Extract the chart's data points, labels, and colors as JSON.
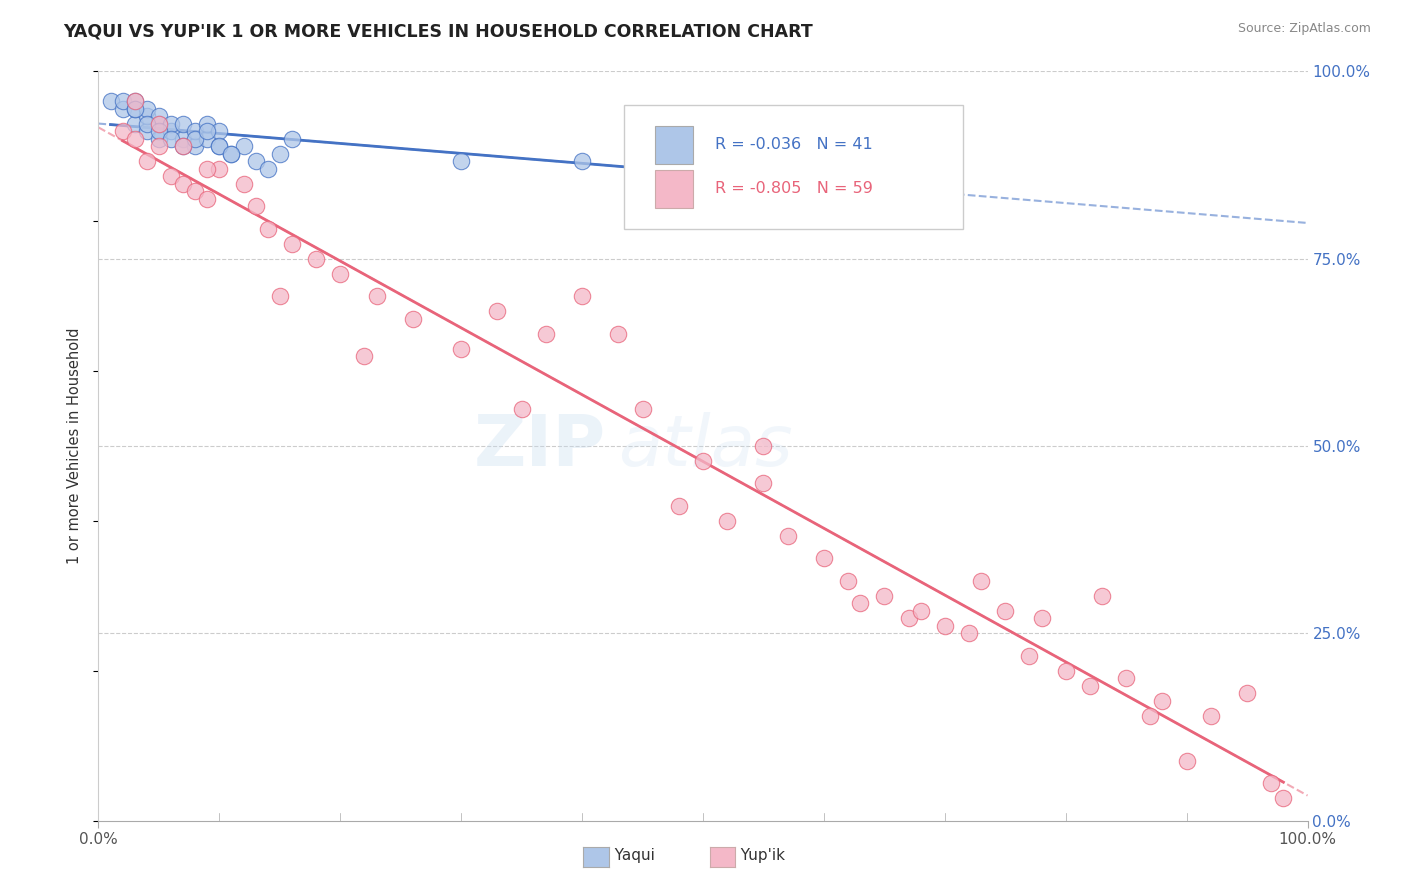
{
  "title": "YAQUI VS YUP'IK 1 OR MORE VEHICLES IN HOUSEHOLD CORRELATION CHART",
  "source": "Source: ZipAtlas.com",
  "ylabel": "1 or more Vehicles in Household",
  "legend_yaqui": "Yaqui",
  "legend_yupik": "Yup'ik",
  "R_yaqui": -0.036,
  "N_yaqui": 41,
  "R_yupik": -0.805,
  "N_yupik": 59,
  "yaqui_color": "#aec6e8",
  "yupik_color": "#f4b8c8",
  "yaqui_line_color": "#4472c4",
  "yupik_line_color": "#e8647a",
  "watermark_zip": "ZIP",
  "watermark_atlas": "atlas",
  "yaqui_x": [
    1,
    2,
    2,
    3,
    3,
    3,
    4,
    4,
    4,
    5,
    5,
    5,
    6,
    6,
    7,
    7,
    8,
    8,
    9,
    9,
    10,
    10,
    11,
    12,
    13,
    14,
    15,
    16,
    3,
    4,
    5,
    6,
    7,
    8,
    9,
    10,
    11,
    30,
    40,
    55,
    65
  ],
  "yaqui_y": [
    96,
    95,
    96,
    93,
    95,
    96,
    92,
    94,
    95,
    91,
    93,
    94,
    92,
    93,
    91,
    93,
    90,
    92,
    91,
    93,
    90,
    92,
    89,
    90,
    88,
    87,
    89,
    91,
    95,
    93,
    92,
    91,
    90,
    91,
    92,
    90,
    89,
    88,
    88,
    87,
    87
  ],
  "yupik_x": [
    2,
    3,
    4,
    5,
    6,
    7,
    8,
    9,
    10,
    12,
    13,
    14,
    16,
    18,
    20,
    23,
    26,
    30,
    33,
    37,
    40,
    43,
    45,
    48,
    50,
    52,
    55,
    57,
    60,
    62,
    63,
    65,
    67,
    68,
    70,
    72,
    73,
    75,
    77,
    78,
    80,
    82,
    83,
    85,
    87,
    88,
    90,
    92,
    95,
    97,
    98,
    3,
    5,
    7,
    9,
    15,
    22,
    35,
    55
  ],
  "yupik_y": [
    92,
    91,
    88,
    90,
    86,
    85,
    84,
    83,
    87,
    85,
    82,
    79,
    77,
    75,
    73,
    70,
    67,
    63,
    68,
    65,
    70,
    65,
    55,
    42,
    48,
    40,
    45,
    38,
    35,
    32,
    29,
    30,
    27,
    28,
    26,
    25,
    32,
    28,
    22,
    27,
    20,
    18,
    30,
    19,
    14,
    16,
    8,
    14,
    17,
    5,
    3,
    96,
    93,
    90,
    87,
    70,
    62,
    55,
    50
  ]
}
